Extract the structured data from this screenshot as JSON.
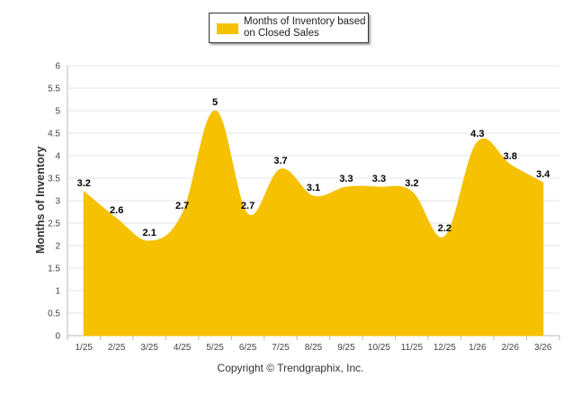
{
  "chart_data": {
    "type": "area",
    "series_name": "Months of Inventory based on Closed Sales",
    "categories": [
      "1/25",
      "2/25",
      "3/25",
      "4/25",
      "5/25",
      "6/25",
      "7/25",
      "8/25",
      "9/25",
      "10/25",
      "11/25",
      "12/25",
      "1/26",
      "2/26",
      "3/26"
    ],
    "values": [
      3.2,
      2.6,
      2.1,
      2.7,
      5,
      2.7,
      3.7,
      3.1,
      3.3,
      3.3,
      3.2,
      2.2,
      4.3,
      3.8,
      3.4
    ],
    "ylabel": "Months of Inventory",
    "xlabel": "",
    "ylim": [
      0,
      6
    ],
    "yticks": [
      "0",
      "0.5",
      "1",
      "1.5",
      "2",
      "2.5",
      "3",
      "3.5",
      "4",
      "4.5",
      "5",
      "5.5",
      "6"
    ],
    "grid": true,
    "legend_position": "top-center",
    "color": "#F5C100"
  },
  "footer": {
    "copyright": "Copyright © Trendgraphix, Inc."
  }
}
